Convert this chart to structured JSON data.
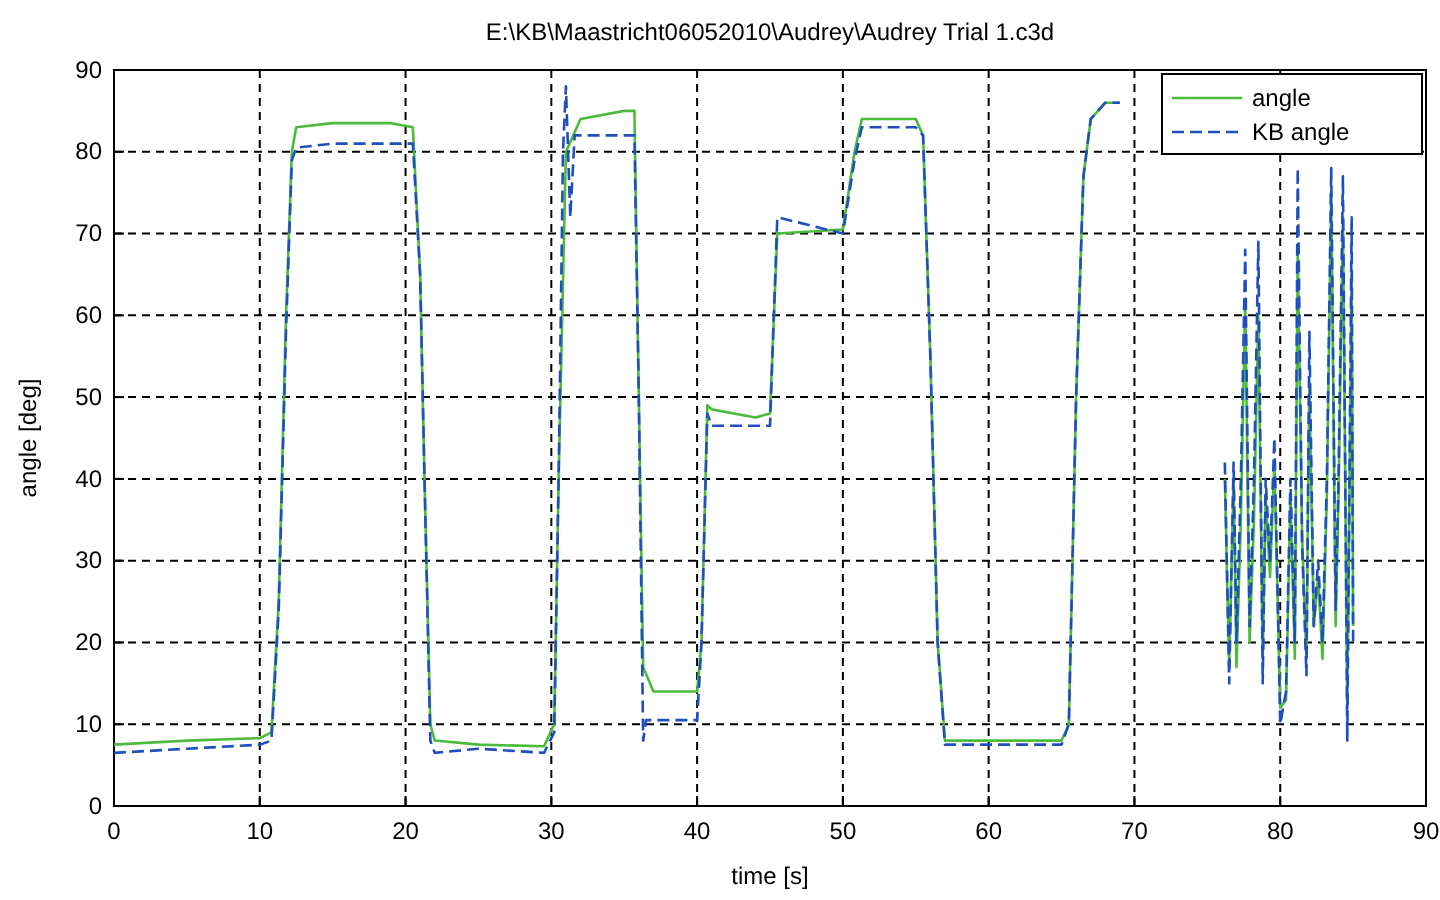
{
  "chart_data": {
    "type": "line",
    "title": "E:\\KB\\Maastricht06052010\\Audrey\\Audrey Trial 1.c3d",
    "xlabel": "time [s]",
    "ylabel": "angle [deg]",
    "xlim": [
      0,
      90
    ],
    "ylim": [
      0,
      90
    ],
    "xticks": [
      0,
      10,
      20,
      30,
      40,
      50,
      60,
      70,
      80,
      90
    ],
    "yticks": [
      0,
      10,
      20,
      30,
      40,
      50,
      60,
      70,
      80,
      90
    ],
    "grid": true,
    "legend": "top right",
    "series": [
      {
        "name": "angle",
        "color": "#4cbb3c",
        "line_style": "solid",
        "x": [
          0,
          5,
          10,
          10.8,
          11.3,
          11.8,
          12.2,
          12.5,
          15,
          19,
          20.5,
          21,
          21.3,
          21.7,
          22,
          25,
          29.5,
          30.2,
          30.5,
          31,
          31.5,
          32,
          35,
          35.7,
          36,
          36.3,
          37,
          40,
          40.3,
          40.7,
          41,
          44,
          45,
          45.5,
          50,
          50.8,
          51.3,
          55,
          55.5,
          56,
          56.5,
          57,
          60,
          65,
          65.5,
          66,
          66.5,
          67,
          68,
          69,
          76,
          76.2,
          76.5,
          76.8,
          77,
          77.3,
          77.6,
          77.9,
          78.2,
          78.5,
          78.8,
          79,
          79.3,
          79.6,
          80,
          80.4,
          80.7,
          81,
          81.2,
          81.5,
          81.8,
          82,
          82.3,
          82.6,
          82.9,
          83.2,
          83.5,
          83.8,
          84,
          84.3,
          84.6,
          84.9,
          85
        ],
        "values": [
          7.5,
          8,
          8.3,
          9,
          25,
          60,
          80,
          83,
          83.5,
          83.5,
          83,
          65,
          40,
          10,
          8,
          7.5,
          7.3,
          10,
          40,
          80,
          82,
          84,
          85,
          85,
          50,
          17,
          14,
          14,
          20,
          49,
          48.5,
          47.5,
          48,
          70,
          70.5,
          80,
          84,
          84,
          82,
          55,
          20,
          8,
          8,
          8,
          10,
          50,
          77,
          84,
          86,
          86,
          null,
          40,
          17,
          40,
          17,
          35,
          62,
          20,
          35,
          60,
          18,
          38,
          28,
          42,
          12,
          13,
          38,
          18,
          68,
          33,
          18,
          52,
          22,
          28,
          18,
          38,
          75,
          22,
          38,
          72,
          12,
          65,
          22
        ]
      },
      {
        "name": "KB angle",
        "color": "#1f4fbf",
        "line_style": "dashed",
        "x": [
          0,
          5,
          10,
          10.8,
          11.3,
          11.8,
          12.2,
          12.5,
          15,
          19,
          20.5,
          21,
          21.3,
          21.7,
          22,
          25,
          29.5,
          30.2,
          30.5,
          30.8,
          31,
          31.3,
          31.6,
          32,
          35,
          35.7,
          36,
          36.3,
          36.5,
          37,
          40,
          40.3,
          40.7,
          41,
          44,
          45,
          45.5,
          50,
          50.8,
          51.3,
          55,
          55.5,
          56,
          56.5,
          57,
          60,
          65,
          65.5,
          66,
          66.5,
          67,
          68,
          69,
          76,
          76.2,
          76.5,
          76.8,
          77,
          77.3,
          77.6,
          77.9,
          78.2,
          78.5,
          78.8,
          79,
          79.3,
          79.6,
          80,
          80.4,
          80.7,
          81,
          81.2,
          81.5,
          81.8,
          82,
          82.3,
          82.6,
          82.9,
          83.2,
          83.5,
          83.8,
          84,
          84.3,
          84.6,
          84.9,
          85
        ],
        "values": [
          6.5,
          7,
          7.5,
          8,
          24,
          58,
          79,
          80.5,
          81,
          81,
          81,
          65,
          40,
          8,
          6.5,
          7,
          6.5,
          9,
          40,
          80,
          88,
          72,
          82,
          82,
          82,
          82,
          50,
          8,
          10.5,
          10.5,
          10.5,
          20,
          48,
          46.5,
          46.5,
          46.5,
          72,
          70,
          79,
          83,
          83,
          82,
          55,
          20,
          7.5,
          7.5,
          7.5,
          10,
          50,
          77,
          84,
          86,
          86,
          null,
          42,
          15,
          42,
          20,
          40,
          68,
          22,
          40,
          69,
          15,
          40,
          30,
          45,
          10,
          14,
          40,
          20,
          78,
          32,
          16,
          58,
          22,
          30,
          20,
          40,
          78,
          24,
          40,
          77,
          8,
          72,
          20
        ]
      }
    ]
  }
}
